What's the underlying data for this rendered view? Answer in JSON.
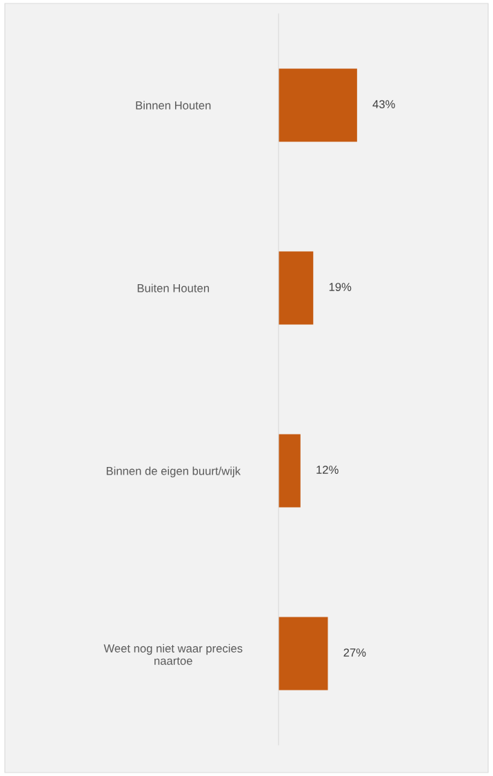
{
  "chart_data": {
    "type": "bar",
    "orientation": "horizontal",
    "categories": [
      "Binnen Houten",
      "Buiten Houten",
      "Binnen de eigen buurt/wijk",
      "Weet nog niet waar precies naartoe"
    ],
    "values": [
      43,
      19,
      12,
      27
    ],
    "color": "#c55a11",
    "value_labels": [
      "43%",
      "19%",
      "12%",
      "27%"
    ],
    "grid": false,
    "legend": false,
    "tick_labels": "y"
  }
}
